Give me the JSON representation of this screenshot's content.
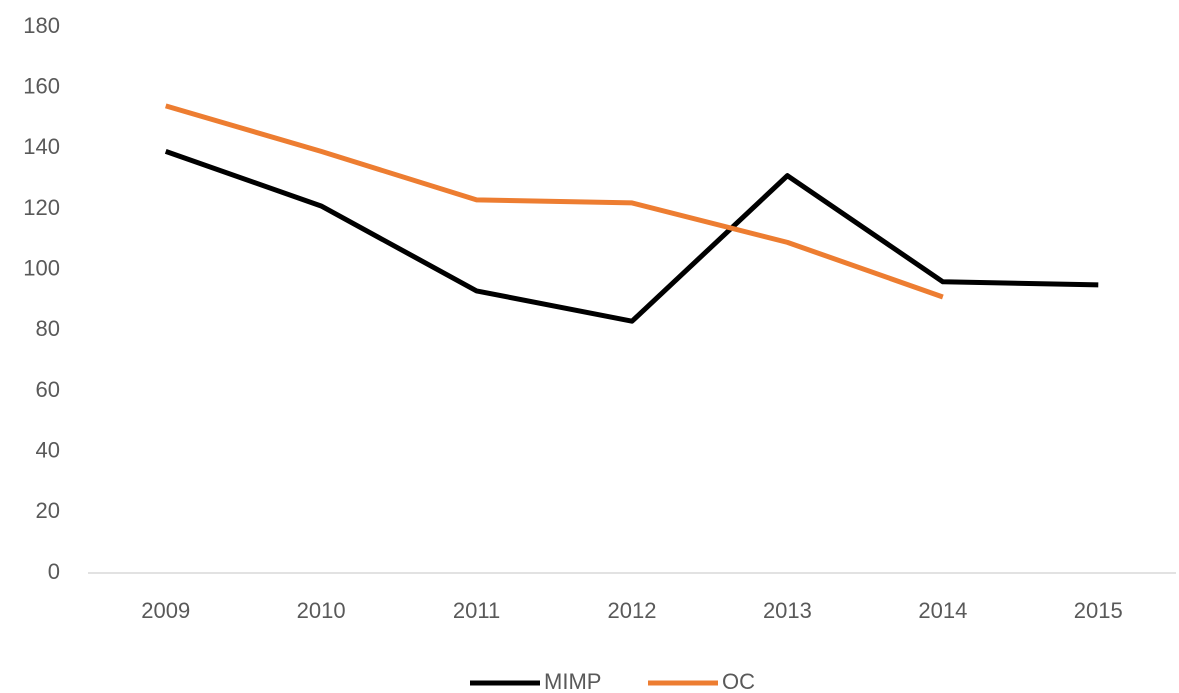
{
  "chart_data": {
    "type": "line",
    "categories": [
      "2009",
      "2010",
      "2011",
      "2012",
      "2013",
      "2014",
      "2015"
    ],
    "series": [
      {
        "name": "MIMP",
        "color": "#000000",
        "values": [
          139,
          121,
          93,
          83,
          131,
          96,
          95
        ]
      },
      {
        "name": "OC",
        "color": "#ed7d31",
        "values": [
          154,
          139,
          123,
          122,
          109,
          91,
          null
        ]
      }
    ],
    "ylim": [
      0,
      180
    ],
    "yticks": [
      0,
      20,
      40,
      60,
      80,
      100,
      120,
      140,
      160,
      180
    ],
    "grid": false,
    "legend": "bottom"
  }
}
